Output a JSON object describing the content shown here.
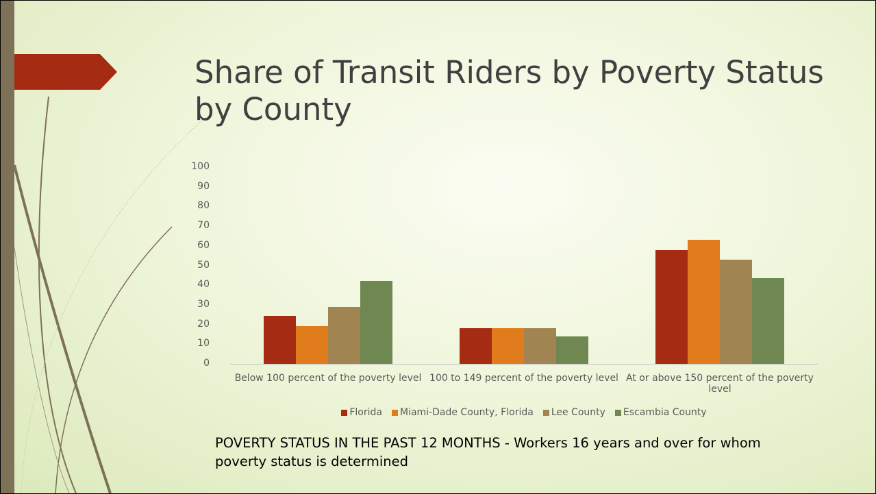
{
  "chart_data": {
    "type": "bar",
    "title": "Share of Transit Riders by Poverty Status by County",
    "caption": "POVERTY STATUS IN THE PAST 12 MONTHS - Workers 16 years and over for whom poverty status is determined",
    "categories": [
      "Below 100 percent of the poverty level",
      "100 to 149 percent of the poverty level",
      "At or above 150 percent of the poverty level"
    ],
    "series": [
      {
        "name": "Florida",
        "color": "#a52b12",
        "values": [
          24.5,
          18,
          58
        ]
      },
      {
        "name": "Miami-Dade County, Florida",
        "color": "#e07c1b",
        "values": [
          19,
          18,
          63
        ]
      },
      {
        "name": "Lee County",
        "color": "#a08553",
        "values": [
          29,
          18,
          53
        ]
      },
      {
        "name": "Escambia County",
        "color": "#6f8750",
        "values": [
          42,
          14,
          43.5
        ]
      }
    ],
    "ylim": [
      0,
      100
    ],
    "yticks": [
      0,
      10,
      20,
      30,
      40,
      50,
      60,
      70,
      80,
      90,
      100
    ],
    "grid": false,
    "legend": "bottom"
  }
}
